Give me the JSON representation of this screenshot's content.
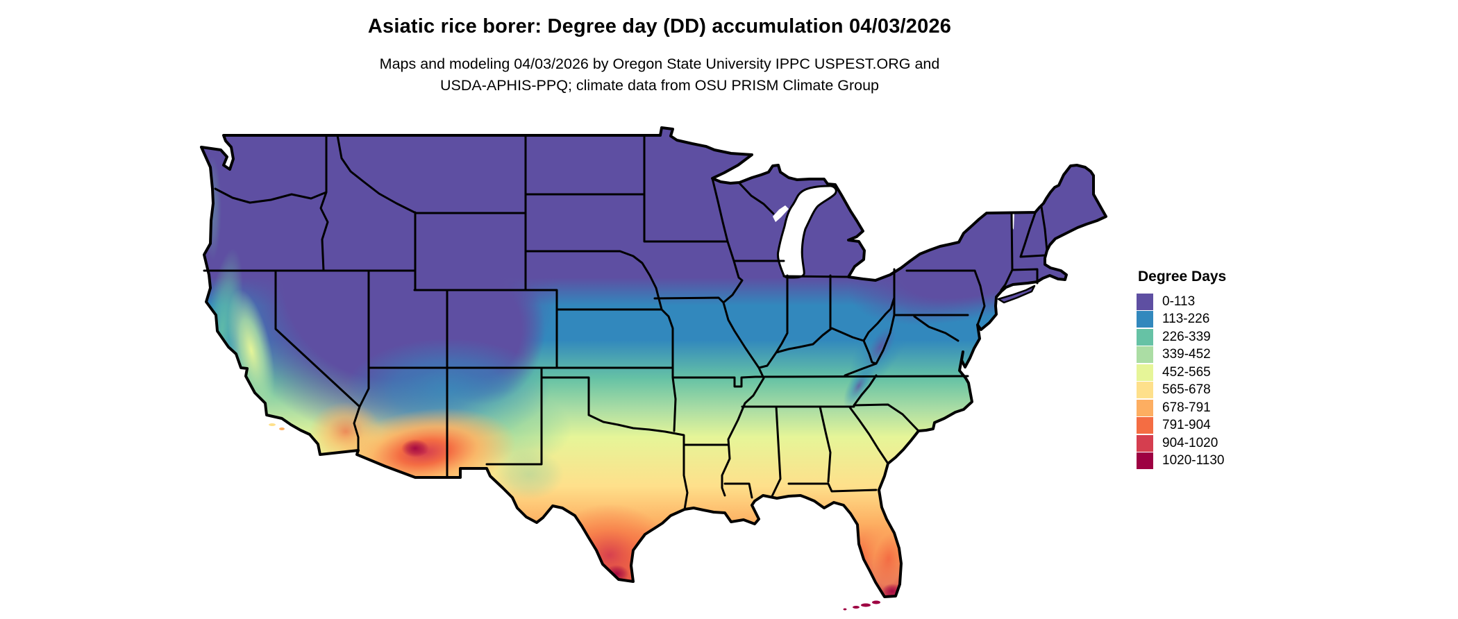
{
  "header": {
    "title": "Asiatic rice borer: Degree day (DD) accumulation 04/03/2026",
    "subtitle_line1": "Maps and modeling 04/03/2026 by Oregon State University IPPC USPEST.ORG and",
    "subtitle_line2": "USDA-APHIS-PPQ; climate data from OSU PRISM Climate Group"
  },
  "legend": {
    "title": "Degree Days",
    "items": [
      {
        "label": "0-113",
        "color": "#5e4fa2"
      },
      {
        "label": "113-226",
        "color": "#3288bd"
      },
      {
        "label": "226-339",
        "color": "#66c2a5"
      },
      {
        "label": "339-452",
        "color": "#abdda4"
      },
      {
        "label": "452-565",
        "color": "#e6f598"
      },
      {
        "label": "565-678",
        "color": "#fee08b"
      },
      {
        "label": "678-791",
        "color": "#fdae61"
      },
      {
        "label": "791-904",
        "color": "#f46d43"
      },
      {
        "label": "904-1020",
        "color": "#d53e4f"
      },
      {
        "label": "1020-1130",
        "color": "#9e0142"
      }
    ]
  },
  "map": {
    "border_color": "#000000",
    "water_color": "#ffffff"
  }
}
